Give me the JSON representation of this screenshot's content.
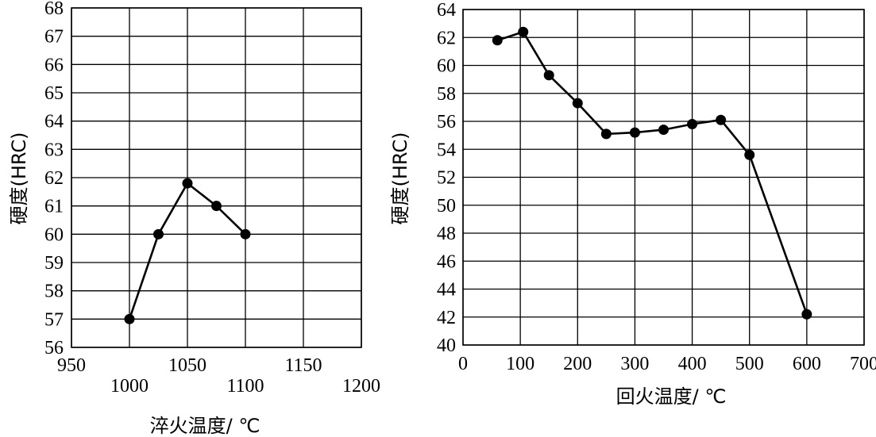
{
  "chart_data": [
    {
      "type": "line",
      "xlabel": "淬火温度/ ℃",
      "ylabel": "硬度(HRC)",
      "xlim": [
        950,
        1200
      ],
      "ylim": [
        56,
        68
      ],
      "xticks": [
        950,
        1000,
        1050,
        1100,
        1150,
        1200
      ],
      "yticks": [
        56,
        57,
        58,
        59,
        60,
        61,
        62,
        63,
        64,
        65,
        66,
        67,
        68
      ],
      "grid": true,
      "x": [
        1000,
        1025,
        1050,
        1075,
        1100
      ],
      "y": [
        57.0,
        60.0,
        61.8,
        61.0,
        60.0
      ]
    },
    {
      "type": "line",
      "xlabel": "回火温度/ ℃",
      "ylabel": "硬度(HRC)",
      "xlim": [
        0,
        700
      ],
      "ylim": [
        40,
        64
      ],
      "xticks": [
        0,
        100,
        200,
        300,
        400,
        500,
        600,
        700
      ],
      "yticks": [
        40,
        42,
        44,
        46,
        48,
        50,
        52,
        54,
        56,
        58,
        60,
        62,
        64
      ],
      "grid": true,
      "x": [
        60,
        105,
        150,
        200,
        250,
        300,
        350,
        400,
        450,
        500,
        600
      ],
      "y": [
        61.8,
        62.4,
        59.3,
        57.3,
        55.1,
        55.2,
        55.4,
        55.8,
        56.1,
        53.6,
        42.2
      ]
    }
  ]
}
